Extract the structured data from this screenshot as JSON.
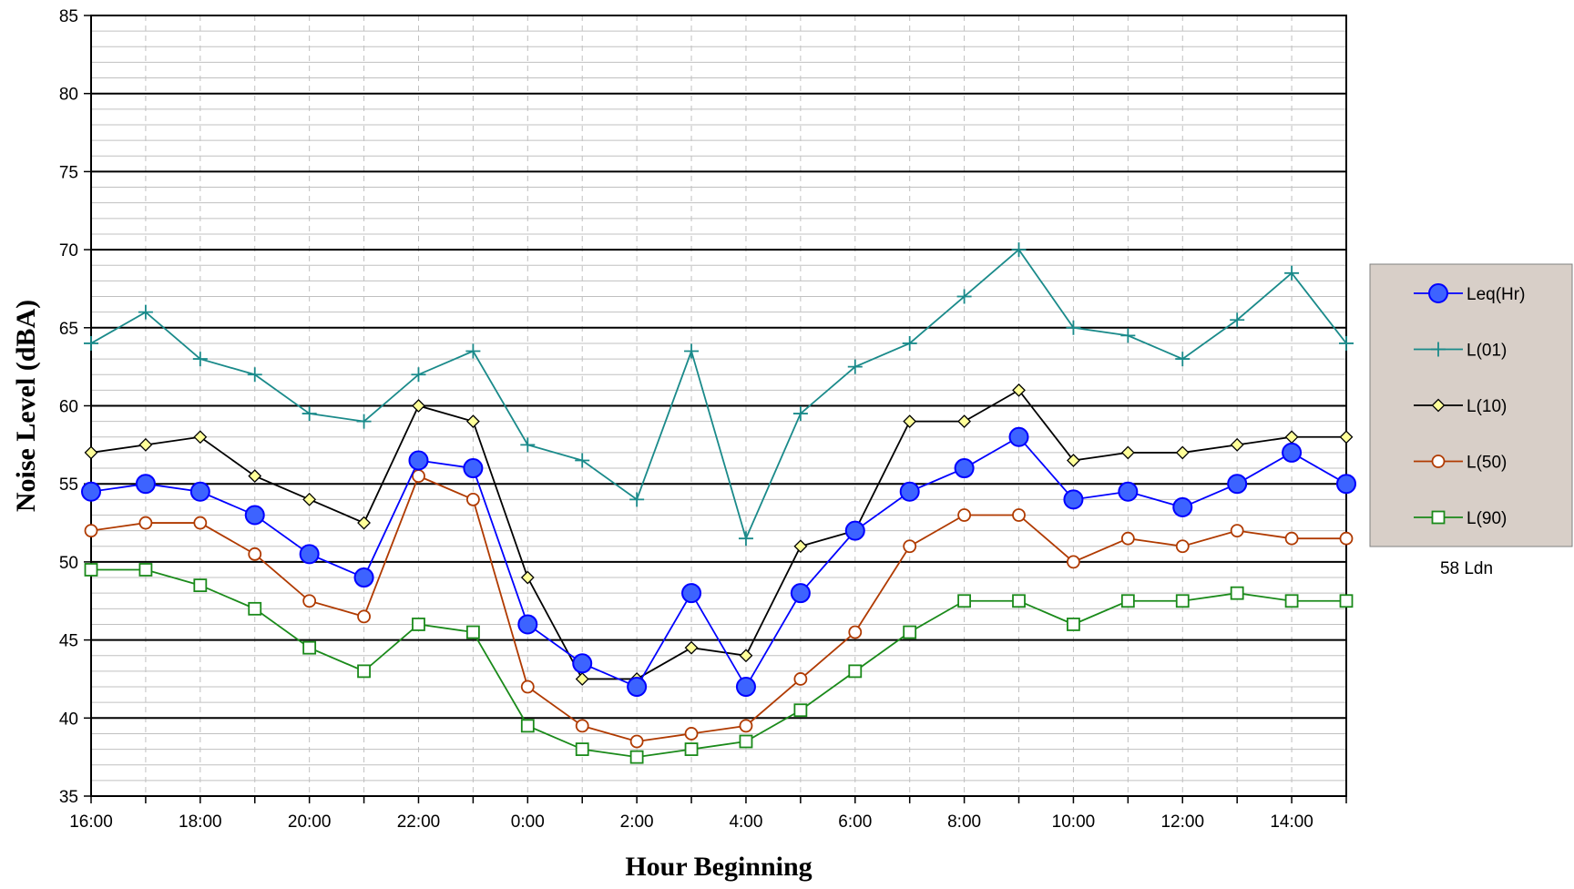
{
  "chart_data": {
    "type": "line",
    "xlabel": "Hour Beginning",
    "ylabel": "Noise Level (dBA)",
    "ylim": [
      35,
      85
    ],
    "y_major_step": 5,
    "y_minor_step": 1,
    "grid": true,
    "legend_position": "right",
    "categories": [
      "16:00",
      "17:00",
      "18:00",
      "19:00",
      "20:00",
      "21:00",
      "22:00",
      "23:00",
      "0:00",
      "1:00",
      "2:00",
      "3:00",
      "4:00",
      "5:00",
      "6:00",
      "7:00",
      "8:00",
      "9:00",
      "10:00",
      "11:00",
      "12:00",
      "13:00",
      "14:00",
      "15:00"
    ],
    "tick_labels": [
      "16:00",
      "",
      "18:00",
      "",
      "20:00",
      "",
      "22:00",
      "",
      "0:00",
      "",
      "2:00",
      "",
      "4:00",
      "",
      "6:00",
      "",
      "8:00",
      "",
      "10:00",
      "",
      "12:00",
      "",
      "14:00",
      ""
    ],
    "series": [
      {
        "name": "Leq(Hr)",
        "color": "#0000ff",
        "fill": "#3d63ff",
        "marker": "circle-large",
        "values": [
          54.5,
          55,
          54.5,
          53,
          50.5,
          49,
          56.5,
          56,
          46,
          43.5,
          42,
          48,
          42,
          48,
          52,
          54.5,
          56,
          58,
          54,
          54.5,
          53.5,
          55,
          57,
          55
        ]
      },
      {
        "name": "L(01)",
        "color": "#1a8a8a",
        "marker": "plus",
        "values": [
          64,
          66,
          63,
          62,
          59.5,
          59,
          62,
          63.5,
          57.5,
          56.5,
          54,
          63.5,
          51.5,
          59.5,
          62.5,
          64,
          67,
          70,
          65,
          64.5,
          63,
          65.5,
          68.5,
          64
        ]
      },
      {
        "name": "L(10)",
        "color": "#000000",
        "fill": "#ffff99",
        "marker": "diamond",
        "values": [
          57,
          57.5,
          58,
          55.5,
          54,
          52.5,
          60,
          59,
          49,
          42.5,
          42.5,
          44.5,
          44,
          51,
          52,
          59,
          59,
          61,
          56.5,
          57,
          57,
          57.5,
          58,
          58
        ]
      },
      {
        "name": "L(50)",
        "color": "#b03a00",
        "fill": "#ffffff",
        "marker": "circle-open",
        "values": [
          52,
          52.5,
          52.5,
          50.5,
          47.5,
          46.5,
          55.5,
          54,
          42,
          39.5,
          38.5,
          39,
          39.5,
          42.5,
          45.5,
          51,
          53,
          53,
          50,
          51.5,
          51,
          52,
          51.5,
          51.5
        ]
      },
      {
        "name": "L(90)",
        "color": "#1a8a1a",
        "fill": "#ffffff",
        "marker": "square-open",
        "values": [
          49.5,
          49.5,
          48.5,
          47,
          44.5,
          43,
          46,
          45.5,
          39.5,
          38,
          37.5,
          38,
          38.5,
          40.5,
          43,
          45.5,
          47.5,
          47.5,
          46,
          47.5,
          47.5,
          48,
          47.5,
          47.5
        ]
      }
    ],
    "annotation": "58 Ldn"
  },
  "colors": {
    "legend_background": "#d8cfc8",
    "major_grid": "#000000",
    "minor_grid": "#c0c0c0"
  }
}
